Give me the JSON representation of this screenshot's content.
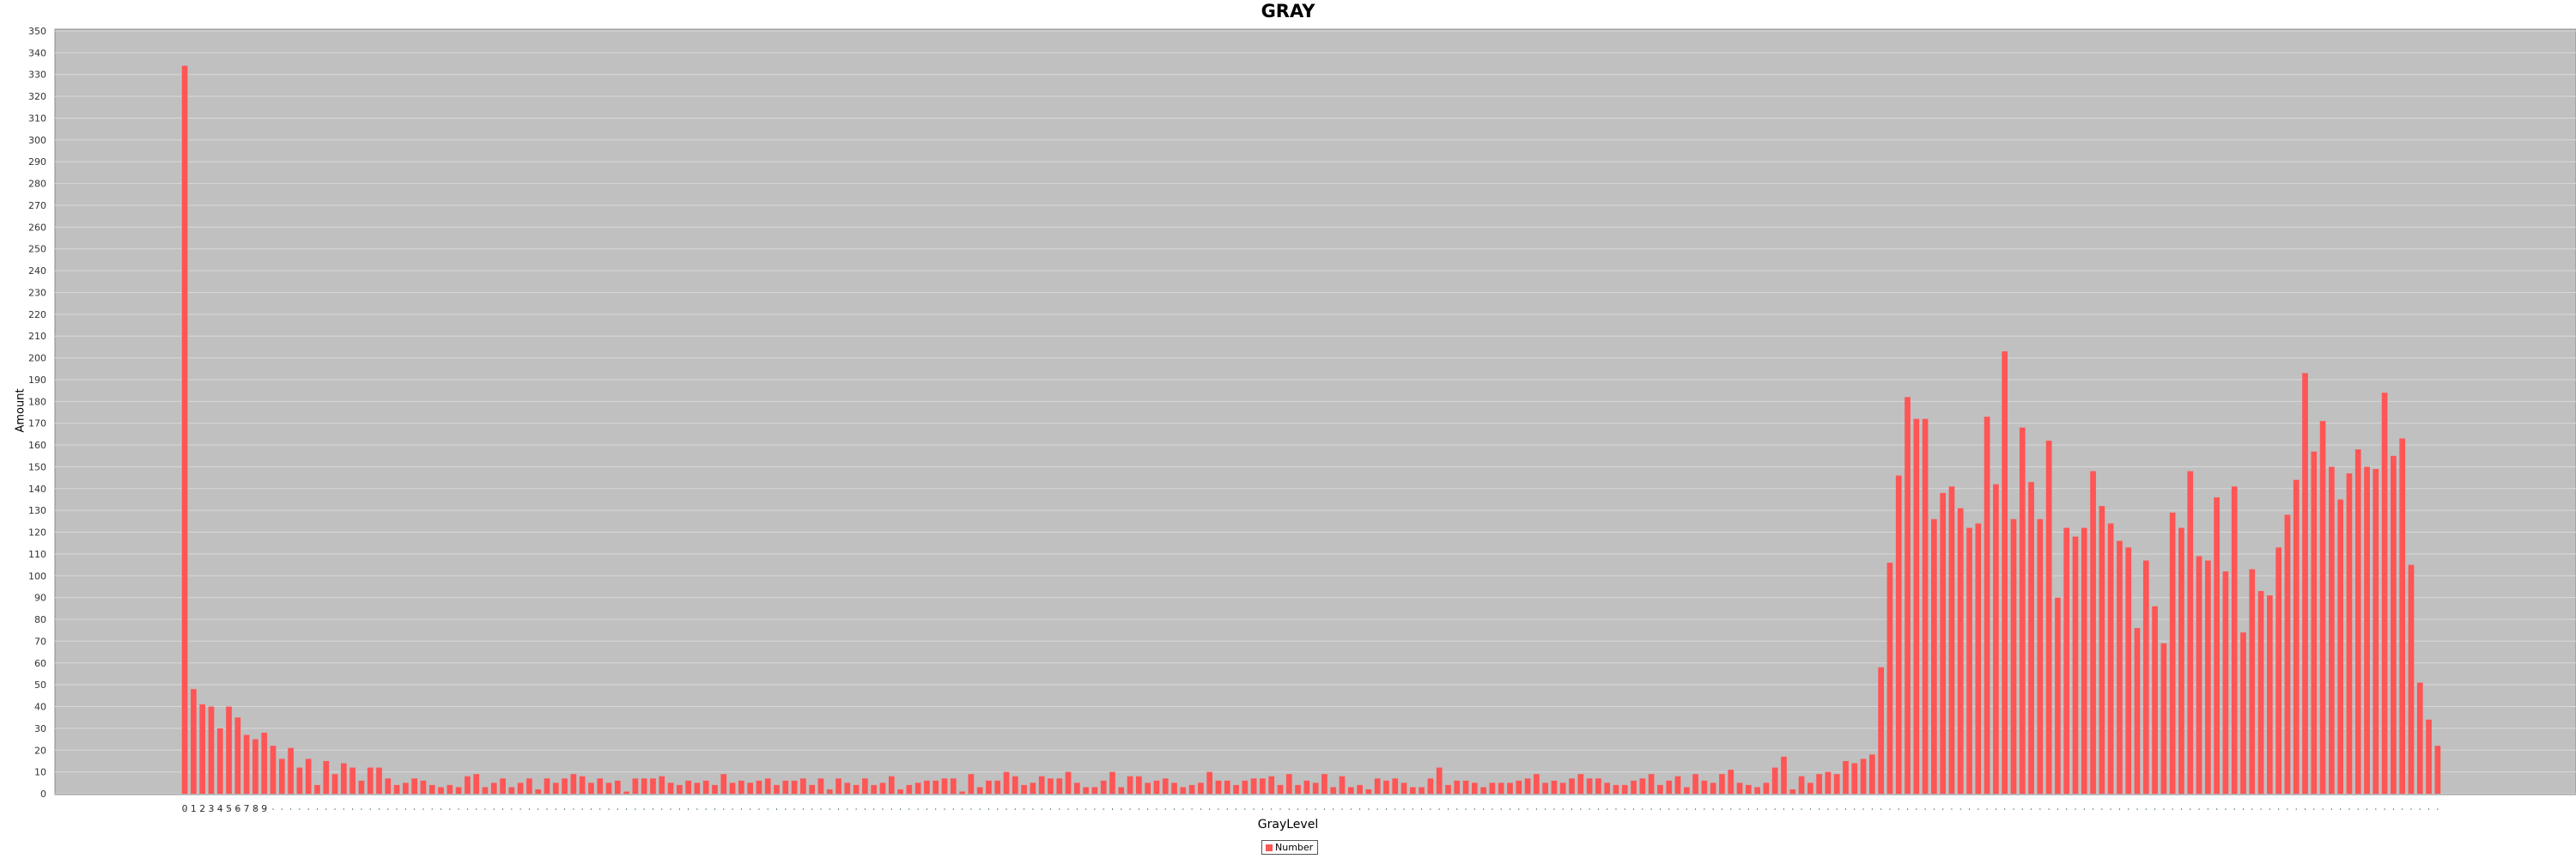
{
  "chart_data": {
    "type": "bar",
    "title": "GRAY",
    "xlabel": "GrayLevel",
    "ylabel": "Amount",
    "ylim": [
      0,
      350
    ],
    "y_ticks": [
      0,
      10,
      20,
      30,
      40,
      50,
      60,
      70,
      80,
      90,
      100,
      110,
      120,
      130,
      140,
      150,
      160,
      170,
      180,
      190,
      200,
      210,
      220,
      230,
      240,
      250,
      260,
      270,
      280,
      290,
      300,
      310,
      320,
      330,
      340,
      350
    ],
    "x_tick_labels_visible": [
      "0",
      "1",
      "2",
      "3",
      "4",
      "5",
      "6",
      "7",
      "8",
      "9"
    ],
    "grid": true,
    "legend": "bottom-center",
    "series": [
      {
        "name": "Number",
        "color": "#ff5555",
        "values": [
          334,
          48,
          41,
          40,
          30,
          40,
          35,
          27,
          25,
          28,
          22,
          16,
          21,
          12,
          16,
          4,
          15,
          9,
          14,
          12,
          6,
          12,
          12,
          7,
          4,
          5,
          7,
          6,
          4,
          3,
          4,
          3,
          8,
          9,
          3,
          5,
          7,
          3,
          5,
          7,
          2,
          7,
          5,
          7,
          9,
          8,
          5,
          7,
          5,
          6,
          1,
          7,
          7,
          7,
          8,
          5,
          4,
          6,
          5,
          6,
          4,
          9,
          5,
          6,
          5,
          6,
          7,
          4,
          6,
          6,
          7,
          4,
          7,
          2,
          7,
          5,
          4,
          7,
          4,
          5,
          8,
          2,
          4,
          5,
          6,
          6,
          7,
          7,
          1,
          9,
          3,
          6,
          6,
          10,
          8,
          4,
          5,
          8,
          7,
          7,
          10,
          5,
          3,
          3,
          6,
          10,
          3,
          8,
          8,
          5,
          6,
          7,
          5,
          3,
          4,
          5,
          10,
          6,
          6,
          4,
          6,
          7,
          7,
          8,
          4,
          9,
          4,
          6,
          5,
          9,
          3,
          8,
          3,
          4,
          2,
          7,
          6,
          7,
          5,
          3,
          3,
          7,
          12,
          4,
          6,
          6,
          5,
          3,
          5,
          5,
          5,
          6,
          7,
          9,
          5,
          6,
          5,
          7,
          9,
          7,
          7,
          5,
          4,
          4,
          6,
          7,
          9,
          4,
          6,
          8,
          3,
          9,
          6,
          5,
          9,
          11,
          5,
          4,
          3,
          5,
          12,
          17,
          2,
          8,
          5,
          9,
          10,
          9,
          15,
          14,
          16,
          18,
          58,
          106,
          146,
          182,
          172,
          172,
          126,
          138,
          141,
          131,
          122,
          124,
          173,
          142,
          203,
          126,
          168,
          143,
          126,
          162,
          90,
          122,
          118,
          122,
          148,
          132,
          124,
          116,
          113,
          76,
          107,
          86,
          69,
          129,
          122,
          148,
          109,
          107,
          136,
          102,
          141,
          74,
          103,
          93,
          91,
          113,
          128,
          144,
          193,
          157,
          171,
          150,
          135,
          147,
          158,
          150,
          149,
          184,
          155,
          163,
          105,
          51,
          34,
          22
        ]
      }
    ]
  }
}
